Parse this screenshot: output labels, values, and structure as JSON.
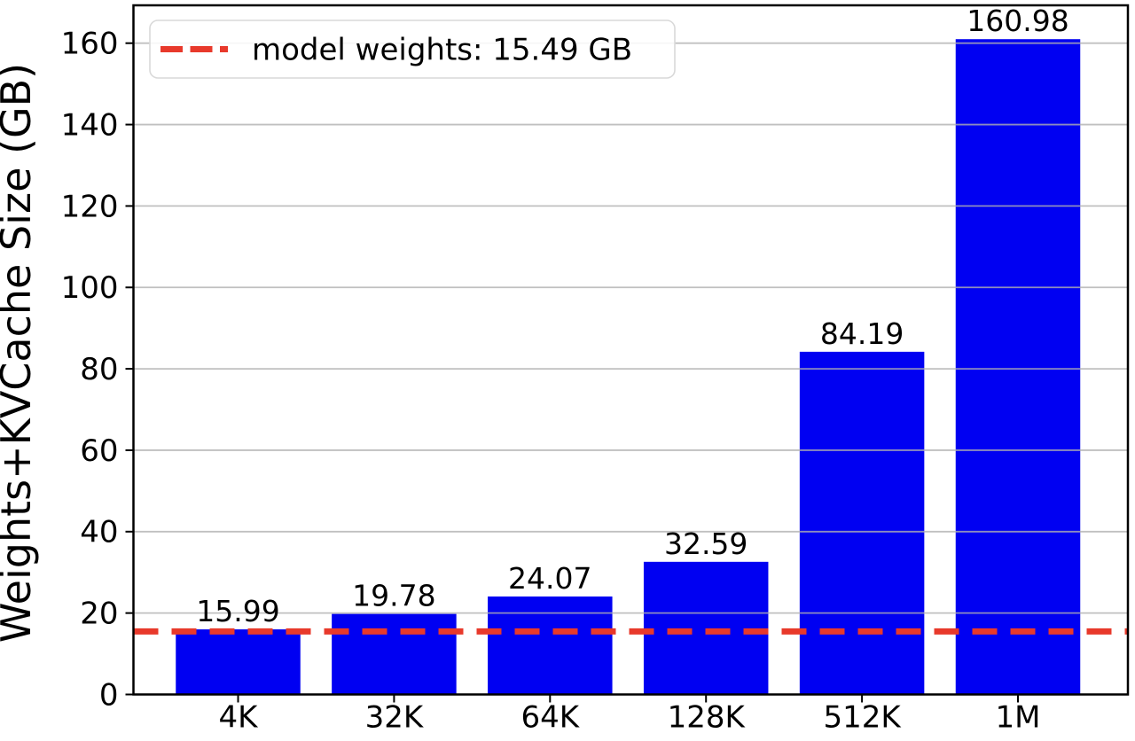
{
  "figure": {
    "background": "#ffffff"
  },
  "chart_data": {
    "type": "bar",
    "title": "",
    "categories": [
      "4K",
      "32K",
      "64K",
      "128K",
      "512K",
      "1M"
    ],
    "values": [
      15.99,
      19.78,
      24.07,
      32.59,
      84.19,
      160.98
    ],
    "bar_value_labels": [
      "15.99",
      "19.78",
      "24.07",
      "32.59",
      "84.19",
      "160.98"
    ],
    "xlabel": "",
    "ylabel": "Weights+KVCache Size (GB)",
    "ylim": [
      0,
      169.3
    ],
    "yticks": [
      0,
      20,
      40,
      60,
      80,
      100,
      120,
      140,
      160
    ],
    "ytick_labels": [
      "0",
      "20",
      "40",
      "60",
      "80",
      "100",
      "120",
      "140",
      "160"
    ],
    "grid": true,
    "grid_on_top": true,
    "legend_position": "upper left",
    "legend": {
      "entries": [
        {
          "label": "model weights: 15.49 GB",
          "marker": "dashed-line",
          "color": "#e8392b"
        }
      ]
    },
    "reference_line": {
      "value": 15.49,
      "label": "model weights: 15.49 GB",
      "style": "dashed",
      "color": "#e8392b"
    },
    "colors": {
      "bar": "#0000f2",
      "reference": "#e8392b",
      "grid": "#b0b0b0",
      "axis": "#000000",
      "text": "#000000",
      "legend_border": "#d9d9d9",
      "legend_fill": "#ffffff"
    }
  }
}
